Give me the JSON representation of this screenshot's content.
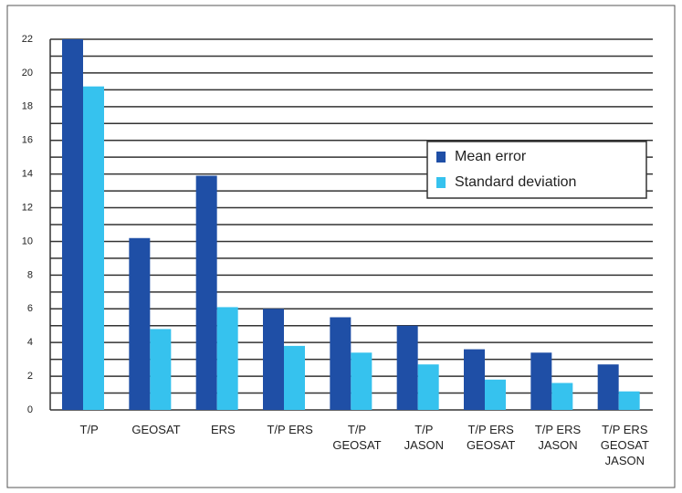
{
  "chart_data": {
    "type": "bar",
    "categories": [
      "T/P",
      "GEOSAT",
      "ERS",
      "T/P ERS",
      "T/P\nGEOSAT",
      "T/P\nJASON",
      "T/P ERS\nGEOSAT",
      "T/P ERS\nJASON",
      "T/P ERS\nGEOSAT\nJASON"
    ],
    "series": [
      {
        "name": "Mean error",
        "color": "#1f4fa6",
        "values": [
          22,
          10.2,
          13.9,
          6.0,
          5.5,
          5.0,
          3.6,
          3.4,
          2.7
        ]
      },
      {
        "name": "Standard deviation",
        "color": "#36c2ee",
        "values": [
          19.2,
          4.8,
          6.1,
          3.8,
          3.4,
          2.7,
          1.8,
          1.6,
          1.1
        ]
      }
    ],
    "ylim": [
      0,
      22
    ],
    "yticks": [
      0,
      2,
      4,
      6,
      8,
      10,
      12,
      14,
      16,
      18,
      20,
      22
    ],
    "yminor": [
      1,
      3,
      5,
      7,
      9,
      11,
      13,
      15,
      17,
      19,
      21
    ],
    "grid": true,
    "legend": "right"
  }
}
